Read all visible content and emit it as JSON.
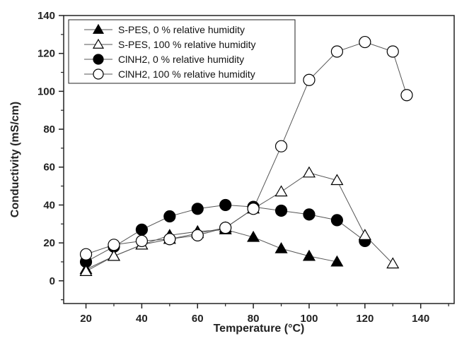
{
  "chart_data": {
    "type": "line",
    "title": "",
    "xlabel": "Temperature (°C)",
    "ylabel": "Conductivity (mS/cm)",
    "xlim": [
      12,
      152
    ],
    "ylim": [
      -12,
      140
    ],
    "xticks": [
      20,
      40,
      60,
      80,
      100,
      120,
      140
    ],
    "yticks": [
      0,
      20,
      40,
      60,
      80,
      100,
      120,
      140
    ],
    "grid": false,
    "legend_position": "top-left",
    "series": [
      {
        "name": "S-PES, 0 % relative humidity",
        "marker": "triangle-filled",
        "x": [
          20,
          30,
          40,
          50,
          60,
          70,
          80,
          90,
          100,
          110
        ],
        "y": [
          6,
          13,
          19,
          24,
          26,
          27,
          23,
          17,
          13,
          10
        ]
      },
      {
        "name": "S-PES, 100 % relative humidity",
        "marker": "triangle-open",
        "x": [
          20,
          30,
          40,
          50,
          60,
          70,
          80,
          90,
          100,
          110,
          120,
          130
        ],
        "y": [
          5,
          13,
          19,
          22,
          25,
          28,
          38,
          47,
          57,
          53,
          24,
          9
        ]
      },
      {
        "name": "ClNH2, 0 % relative humidity",
        "marker": "circle-filled",
        "x": [
          20,
          30,
          40,
          50,
          60,
          70,
          80,
          90,
          100,
          110,
          120
        ],
        "y": [
          10,
          18,
          27,
          34,
          38,
          40,
          39,
          37,
          35,
          32,
          21
        ]
      },
      {
        "name": "ClNH2, 100 % relative humidity",
        "marker": "circle-open",
        "x": [
          20,
          30,
          40,
          50,
          60,
          70,
          80,
          90,
          100,
          110,
          120,
          130,
          135
        ],
        "y": [
          14,
          19,
          21,
          22,
          24,
          28,
          38,
          71,
          106,
          121,
          126,
          121,
          98
        ]
      }
    ]
  }
}
